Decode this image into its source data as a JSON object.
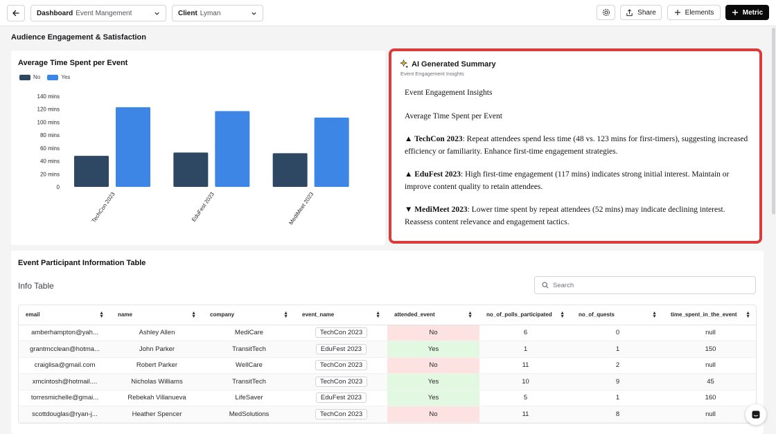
{
  "topbar": {
    "dashboard_key": "Dashboard",
    "dashboard_value": "Event Mangement",
    "client_key": "Client",
    "client_value": "Lyman",
    "share_label": "Share",
    "elements_label": "Elements",
    "metric_label": "Metric"
  },
  "section_title": "Audience Engagement & Satisfaction",
  "chart_card": {
    "title": "Average Time Spent per Event"
  },
  "chart_data": {
    "type": "bar",
    "title": "Average Time Spent per Event",
    "categories": [
      "TechCon 2023",
      "EduFest 2023",
      "MediMeet 2023"
    ],
    "series": [
      {
        "name": "No",
        "values": [
          48,
          53,
          52
        ],
        "color": "#2e4863"
      },
      {
        "name": "Yes",
        "values": [
          123,
          117,
          107
        ],
        "color": "#3e86e6"
      }
    ],
    "ylim": [
      0,
      140
    ],
    "yticks": [
      "0",
      "20 mins",
      "40 mins",
      "60 mins",
      "80 mins",
      "100 mins",
      "120 mins",
      "140 mins"
    ],
    "legend": "top-left",
    "grid": false
  },
  "ai_summary": {
    "title": "AI Generated Summary",
    "subtitle": "Event Engagement Insights",
    "heading": "Event Engagement Insights",
    "subheading": "Average Time Spent per Event",
    "items": [
      {
        "marker": "▲",
        "event": "TechCon 2023",
        "text": ": Repeat attendees spend less time (48 vs. 123 mins for first-timers), suggesting increased efficiency or familiarity. Enhance first-time engagement strategies."
      },
      {
        "marker": "▲",
        "event": "EduFest 2023",
        "text": ": High first-time engagement (117 mins) indicates strong initial interest. Maintain or improve content quality to retain attendees."
      },
      {
        "marker": "▼",
        "event": "MediMeet 2023",
        "text": ": Lower time spent by repeat attendees (52 mins) may indicate declining interest. Reassess content relevance and engagement tactics."
      }
    ]
  },
  "table_card": {
    "title": "Event Participant Information Table",
    "info_title": "Info Table",
    "search_placeholder": "Search",
    "columns": [
      "email",
      "name",
      "company",
      "event_name",
      "attended_event",
      "no_of_polls_participated",
      "no_of_quests",
      "time_spent_in_the_event"
    ],
    "rows": [
      [
        "amberhampton@yah...",
        "Ashley Allen",
        "MediCare",
        "TechCon 2023",
        "No",
        "6",
        "0",
        "null"
      ],
      [
        "grantmcclean@hotma...",
        "John Parker",
        "TransitTech",
        "EduFest 2023",
        "Yes",
        "1",
        "1",
        "150"
      ],
      [
        "craiglisa@gmail.com",
        "Robert Parker",
        "WellCare",
        "TechCon 2023",
        "No",
        "11",
        "2",
        "null"
      ],
      [
        "xmcintosh@hotmail....",
        "Nicholas Williams",
        "TransitTech",
        "TechCon 2023",
        "Yes",
        "10",
        "9",
        "45"
      ],
      [
        "torresmichelle@gmai...",
        "Rebekah Villanueva",
        "LifeSaver",
        "EduFest 2023",
        "Yes",
        "5",
        "1",
        "160"
      ],
      [
        "scottdouglas@ryan-j...",
        "Heather Spencer",
        "MedSolutions",
        "TechCon 2023",
        "No",
        "11",
        "8",
        "null"
      ]
    ]
  }
}
